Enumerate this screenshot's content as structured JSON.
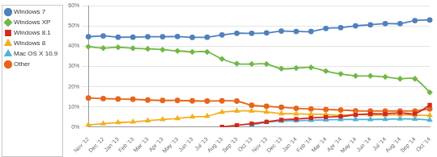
{
  "chart_data": {
    "type": "line",
    "categories": [
      "Nov '12",
      "Dec '12",
      "Jan '13",
      "Feb '13",
      "Mar '13",
      "Apr '13",
      "May '13",
      "Jun '13",
      "Jul '13",
      "Aug '13",
      "Sep '13",
      "Oct '13",
      "Nov '13",
      "Dec '13",
      "Jan '14",
      "Feb '14",
      "Mar '14",
      "Apr '14",
      "May '14",
      "Jun '14",
      "Jul '14",
      "Aug '14",
      "Sep '14",
      "Oct '14"
    ],
    "series": [
      {
        "name": "Windows 7",
        "color": "#4f81bd",
        "marker": "circle",
        "values": [
          44.7,
          45.1,
          44.5,
          44.5,
          44.7,
          44.7,
          44.8,
          44.4,
          44.5,
          45.6,
          46.4,
          46.4,
          46.6,
          47.5,
          47.3,
          47.3,
          48.8,
          49.2,
          50.1,
          50.6,
          51.2,
          51.2,
          52.7,
          53.0
        ]
      },
      {
        "name": "Windows XP",
        "color": "#70b844",
        "marker": "diamond",
        "values": [
          39.8,
          39.1,
          39.5,
          39.0,
          38.7,
          38.3,
          37.7,
          37.2,
          37.2,
          33.7,
          31.4,
          31.2,
          31.2,
          28.9,
          29.2,
          29.5,
          27.7,
          26.3,
          25.3,
          25.3,
          24.8,
          23.9,
          23.9,
          17.2
        ]
      },
      {
        "name": "Windows 8.1",
        "color": "#d7261e",
        "marker": "square",
        "values": [
          null,
          null,
          null,
          null,
          null,
          null,
          null,
          null,
          null,
          0.1,
          0.9,
          1.7,
          2.6,
          3.6,
          4.0,
          4.5,
          5.0,
          5.3,
          6.1,
          6.6,
          6.6,
          7.1,
          6.7,
          10.9
        ]
      },
      {
        "name": "Windows 8",
        "color": "#f2b01e",
        "marker": "triangle",
        "values": [
          1.1,
          1.7,
          2.3,
          2.6,
          3.2,
          3.8,
          4.3,
          5.1,
          5.4,
          7.4,
          8.0,
          8.0,
          7.5,
          6.7,
          6.6,
          6.4,
          6.3,
          5.9,
          6.3,
          6.0,
          6.0,
          6.1,
          5.9,
          5.8
        ]
      },
      {
        "name": "Mac OS X 10.9",
        "color": "#4fb3d9",
        "marker": "triangle",
        "values": [
          null,
          null,
          null,
          null,
          null,
          null,
          null,
          null,
          null,
          null,
          null,
          1.0,
          2.4,
          3.0,
          3.2,
          3.4,
          3.6,
          3.8,
          3.8,
          3.8,
          3.9,
          4.1,
          4.0,
          3.5
        ]
      },
      {
        "name": "Other",
        "color": "#e8641b",
        "marker": "circle",
        "values": [
          14.4,
          14.1,
          13.9,
          13.8,
          13.4,
          13.2,
          13.2,
          13.0,
          12.9,
          13.0,
          12.9,
          10.8,
          10.3,
          9.8,
          9.3,
          9.0,
          8.7,
          8.5,
          8.1,
          8.0,
          8.0,
          8.0,
          8.0,
          9.0
        ]
      }
    ],
    "ylim": [
      0,
      60
    ],
    "yticks": [
      {
        "value": 0,
        "label": "0%"
      },
      {
        "value": 10,
        "label": "10%"
      },
      {
        "value": 20,
        "label": "20%"
      },
      {
        "value": 30,
        "label": "30%"
      },
      {
        "value": 40,
        "label": "40%"
      },
      {
        "value": 50,
        "label": "50%"
      },
      {
        "value": 60,
        "label": "60%"
      }
    ],
    "grid": true,
    "legend": "top-left"
  }
}
